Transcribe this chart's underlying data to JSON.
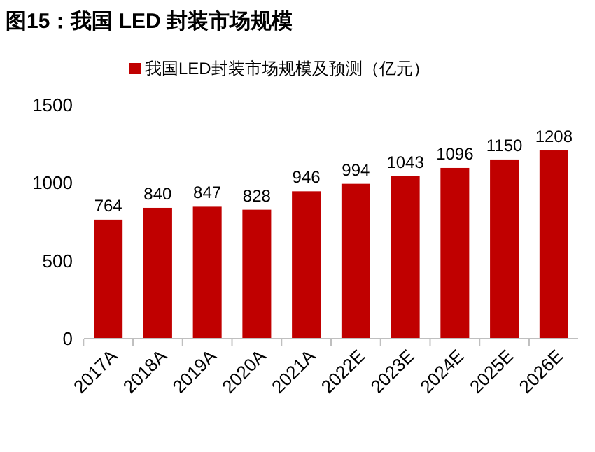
{
  "chart_data": {
    "type": "bar",
    "title": "图15：我国 LED 封装市场规模",
    "categories": [
      "2017A",
      "2018A",
      "2019A",
      "2020A",
      "2021A",
      "2022E",
      "2023E",
      "2024E",
      "2025E",
      "2026E"
    ],
    "series": [
      {
        "name": "我国LED封装市场规模及预测（亿元）",
        "color": "#c00000",
        "values": [
          764,
          840,
          847,
          828,
          946,
          994,
          1043,
          1096,
          1150,
          1208
        ]
      }
    ],
    "ylim": [
      0,
      1500
    ],
    "yticks": [
      0,
      500,
      1000,
      1500
    ],
    "grid": false,
    "legend": "top",
    "data_labels": true
  }
}
